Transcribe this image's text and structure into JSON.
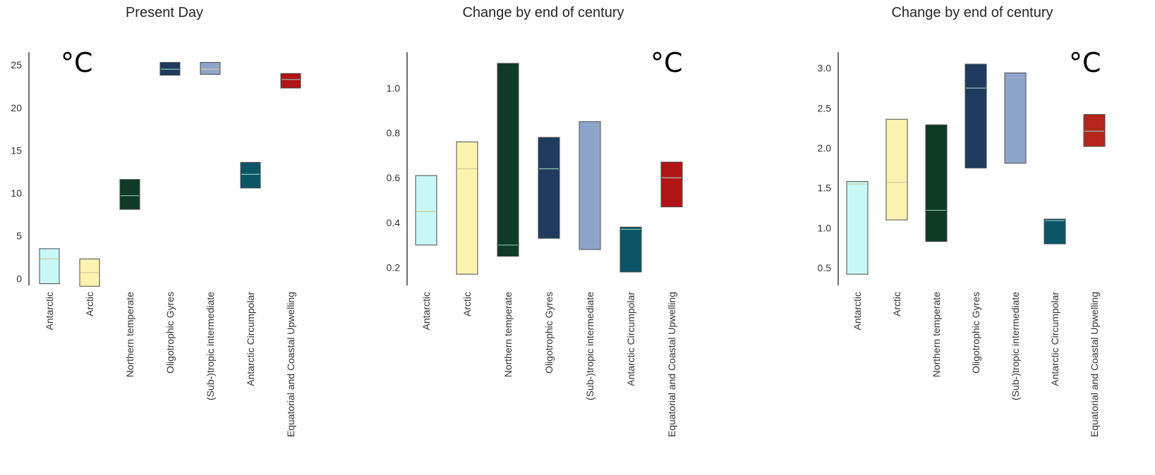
{
  "chart_data": [
    {
      "type": "bar",
      "title": "Present Day",
      "unit_label": "°C",
      "categories": [
        "Antarctic",
        "Arctic",
        "Northern temperate",
        "Oligotrophic Gyres",
        "(Sub-)tropic intermediate",
        "Antarctic Circumpolar",
        "Equatorial and Coastal Upwelling"
      ],
      "colors": [
        "#c8f7f7",
        "#fdf2b0",
        "#0e3a26",
        "#1f3a5f",
        "#8ea5cb",
        "#0b5566",
        "#b01414"
      ],
      "low": [
        -0.6,
        -0.9,
        8.1,
        23.8,
        23.9,
        10.6,
        22.3
      ],
      "high": [
        3.5,
        2.3,
        11.6,
        25.3,
        25.3,
        13.6,
        24.0
      ],
      "median": [
        2.3,
        0.7,
        9.7,
        24.5,
        24.5,
        12.2,
        23.3
      ],
      "ylim": [
        -0.8,
        26.5
      ],
      "yticks": [
        "0",
        "5",
        "10",
        "15",
        "20",
        "25"
      ],
      "grid": false
    },
    {
      "type": "bar",
      "title": "Change by end of century",
      "unit_label": "°C",
      "categories": [
        "Antarctic",
        "Arctic",
        "Northern temperate",
        "Oligotrophic Gyres",
        "(Sub-)tropic intermediate",
        "Antarctic Circumpolar",
        "Equatorial and Coastal Upwelling"
      ],
      "colors": [
        "#c8f7f7",
        "#fdf2b0",
        "#0e3a26",
        "#1f3a5f",
        "#8ea5cb",
        "#0b5566",
        "#b01414"
      ],
      "low": [
        0.3,
        0.17,
        0.25,
        0.33,
        0.28,
        0.18,
        0.47
      ],
      "high": [
        0.61,
        0.76,
        1.11,
        0.78,
        0.85,
        0.38,
        0.67
      ],
      "median": [
        0.45,
        0.64,
        0.3,
        0.64,
        null,
        0.37,
        0.6
      ],
      "ylim": [
        0.12,
        1.16
      ],
      "yticks": [
        "0.2",
        "0.4",
        "0.6",
        "0.8",
        "1.0"
      ],
      "grid": false
    },
    {
      "type": "bar",
      "title": "Change by end of century",
      "unit_label": "°C",
      "categories": [
        "Antarctic",
        "Arctic",
        "Northern temperate",
        "Oligotrophic Gyres",
        "(Sub-)tropic intermediate",
        "Antarctic Circumpolar",
        "Equatorial and Coastal Upwelling"
      ],
      "colors": [
        "#c8f7f7",
        "#fdf2b0",
        "#0e3a26",
        "#1f3a5f",
        "#8ea5cb",
        "#0b5566",
        "#b5261c"
      ],
      "low": [
        0.42,
        1.1,
        0.83,
        1.75,
        1.81,
        0.8,
        2.02
      ],
      "high": [
        1.58,
        2.36,
        2.29,
        3.05,
        2.94,
        1.11,
        2.42
      ],
      "median": [
        1.55,
        1.57,
        1.22,
        2.75,
        null,
        1.09,
        2.21
      ],
      "ylim": [
        0.28,
        3.2
      ],
      "yticks": [
        "0.5",
        "1.0",
        "1.5",
        "2.0",
        "2.5",
        "3.0"
      ],
      "grid": false
    }
  ]
}
